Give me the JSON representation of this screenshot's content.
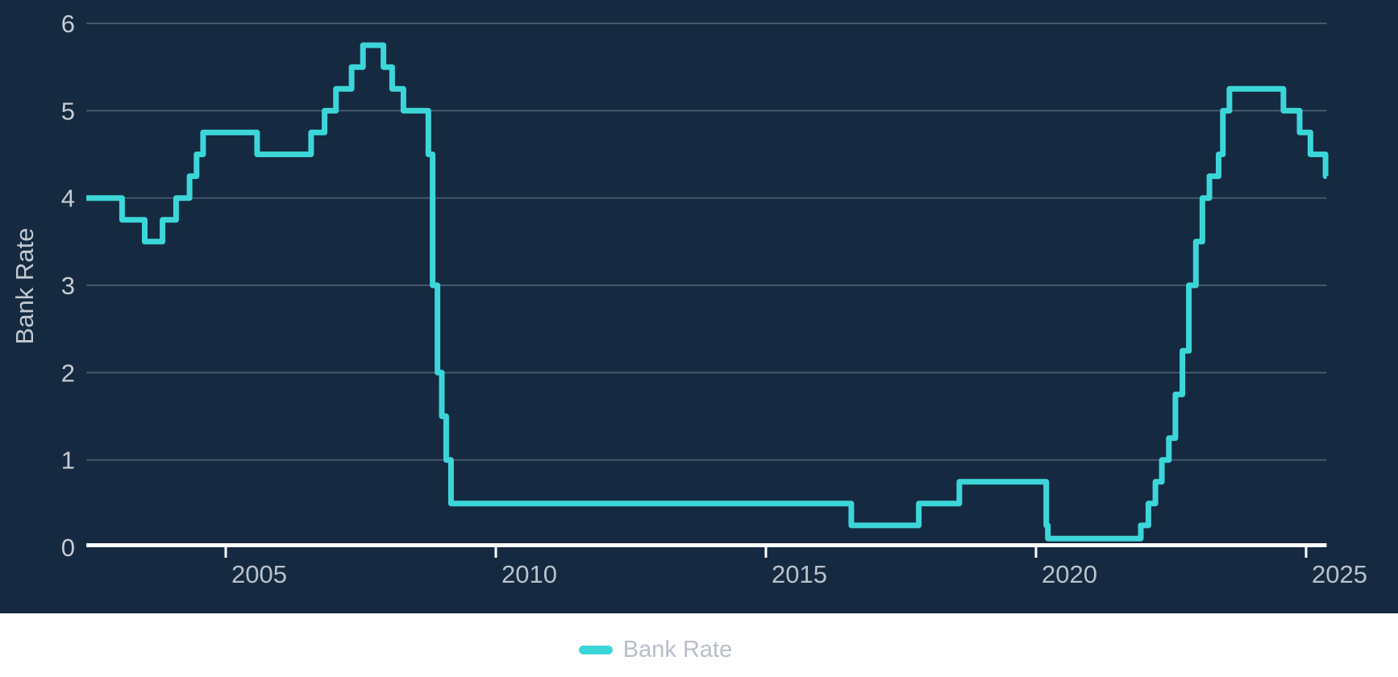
{
  "chart_data": {
    "type": "line",
    "subtype": "step-after",
    "title": "",
    "xlabel": "",
    "ylabel": "Bank Rate",
    "ylim": [
      0,
      6
    ],
    "xlim": [
      2002.42,
      2025.38
    ],
    "grid": true,
    "legend_position": "bottom-center",
    "y_ticks": [
      0,
      1,
      2,
      3,
      4,
      5,
      6
    ],
    "y_tick_labels": [
      "0",
      "1",
      "2",
      "3",
      "4",
      "5",
      "6"
    ],
    "x_ticks": [
      2005,
      2010,
      2015,
      2020,
      2025
    ],
    "x_tick_labels": [
      "2005",
      "2010",
      "2015",
      "2020",
      "2025"
    ],
    "series": [
      {
        "name": "Bank Rate",
        "color": "#3cd6d9",
        "points": [
          {
            "year": 2002.42,
            "rate": 4.0
          },
          {
            "year": 2003.08,
            "rate": 3.75
          },
          {
            "year": 2003.5,
            "rate": 3.5
          },
          {
            "year": 2003.83,
            "rate": 3.75
          },
          {
            "year": 2004.08,
            "rate": 4.0
          },
          {
            "year": 2004.33,
            "rate": 4.25
          },
          {
            "year": 2004.46,
            "rate": 4.5
          },
          {
            "year": 2004.58,
            "rate": 4.75
          },
          {
            "year": 2005.58,
            "rate": 4.5
          },
          {
            "year": 2006.58,
            "rate": 4.75
          },
          {
            "year": 2006.83,
            "rate": 5.0
          },
          {
            "year": 2007.04,
            "rate": 5.25
          },
          {
            "year": 2007.33,
            "rate": 5.5
          },
          {
            "year": 2007.54,
            "rate": 5.75
          },
          {
            "year": 2007.92,
            "rate": 5.5
          },
          {
            "year": 2008.08,
            "rate": 5.25
          },
          {
            "year": 2008.29,
            "rate": 5.0
          },
          {
            "year": 2008.75,
            "rate": 4.5
          },
          {
            "year": 2008.83,
            "rate": 3.0
          },
          {
            "year": 2008.92,
            "rate": 2.0
          },
          {
            "year": 2009.0,
            "rate": 1.5
          },
          {
            "year": 2009.08,
            "rate": 1.0
          },
          {
            "year": 2009.17,
            "rate": 0.5
          },
          {
            "year": 2016.58,
            "rate": 0.25
          },
          {
            "year": 2017.83,
            "rate": 0.5
          },
          {
            "year": 2018.58,
            "rate": 0.75
          },
          {
            "year": 2020.19,
            "rate": 0.25
          },
          {
            "year": 2020.22,
            "rate": 0.1
          },
          {
            "year": 2021.94,
            "rate": 0.25
          },
          {
            "year": 2022.08,
            "rate": 0.5
          },
          {
            "year": 2022.21,
            "rate": 0.75
          },
          {
            "year": 2022.33,
            "rate": 1.0
          },
          {
            "year": 2022.46,
            "rate": 1.25
          },
          {
            "year": 2022.58,
            "rate": 1.75
          },
          {
            "year": 2022.71,
            "rate": 2.25
          },
          {
            "year": 2022.83,
            "rate": 3.0
          },
          {
            "year": 2022.96,
            "rate": 3.5
          },
          {
            "year": 2023.08,
            "rate": 4.0
          },
          {
            "year": 2023.21,
            "rate": 4.25
          },
          {
            "year": 2023.38,
            "rate": 4.5
          },
          {
            "year": 2023.46,
            "rate": 5.0
          },
          {
            "year": 2023.58,
            "rate": 5.25
          },
          {
            "year": 2024.58,
            "rate": 5.0
          },
          {
            "year": 2024.88,
            "rate": 4.75
          },
          {
            "year": 2025.08,
            "rate": 4.5
          },
          {
            "year": 2025.36,
            "rate": 4.25
          }
        ]
      }
    ]
  },
  "legend": {
    "items": [
      {
        "label": "Bank Rate",
        "color": "#3cd6d9"
      }
    ]
  },
  "colors": {
    "background": "#152a40",
    "gridline": "#4e5e72",
    "axis_line": "#ffffff",
    "y_tick_label": "#c6cbd4",
    "x_tick_label": "#b9c1cb",
    "axis_title": "#c3c9d2",
    "series_line": "#3cd6d9",
    "legend_text": "#b9bfc8",
    "legend_background": "#ffffff"
  }
}
